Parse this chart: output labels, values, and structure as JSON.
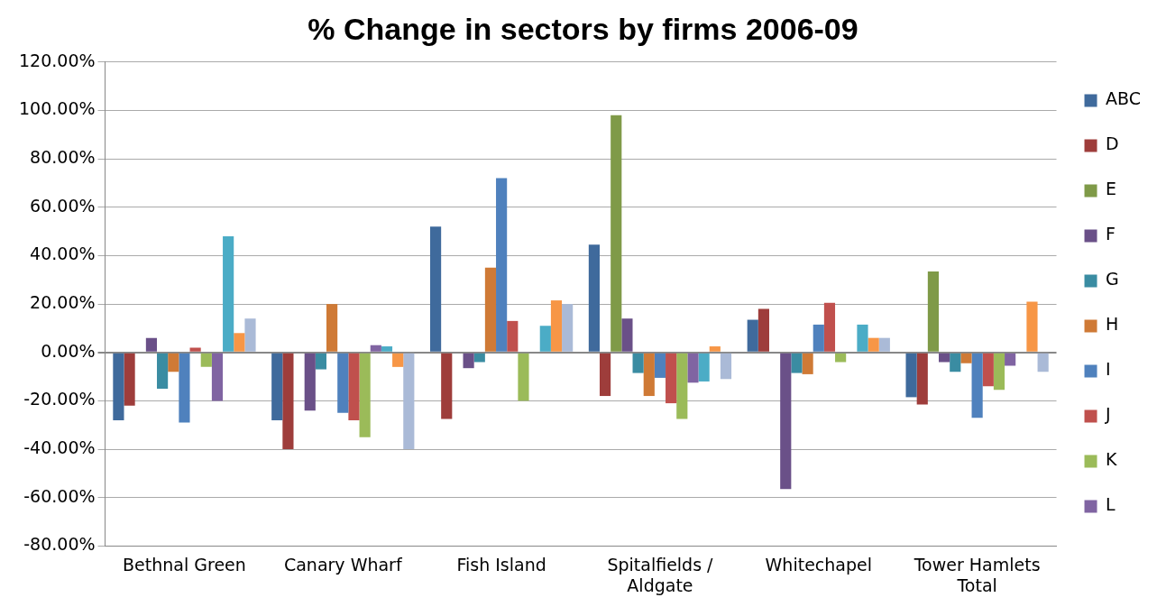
{
  "chart_data": {
    "type": "bar",
    "title": "% Change in sectors by firms 2006-09",
    "categories": [
      "Bethnal Green",
      "Canary Wharf",
      "Fish Island",
      "Spitalfields / Aldgate",
      "Whitechapel",
      "Tower Hamlets Total"
    ],
    "series": [
      {
        "name": "ABC",
        "color": "#3f6a9c",
        "values": [
          -28,
          -28,
          52,
          44.5,
          13.5,
          -18.5
        ]
      },
      {
        "name": "D",
        "color": "#9e3d3b",
        "values": [
          -22,
          -40,
          -27.5,
          -18,
          18,
          -21.5
        ]
      },
      {
        "name": "E",
        "color": "#7f9a48",
        "values": [
          0,
          0,
          0,
          98,
          0,
          33.5
        ]
      },
      {
        "name": "F",
        "color": "#6a5088",
        "values": [
          6,
          -24,
          -6.5,
          14,
          -56.5,
          -4
        ]
      },
      {
        "name": "G",
        "color": "#3a8ca2",
        "values": [
          -15,
          -7,
          -4,
          -8.5,
          -8.5,
          -8
        ]
      },
      {
        "name": "H",
        "color": "#cf7a36",
        "values": [
          -8,
          20,
          35,
          -18,
          -9,
          -4.5
        ]
      },
      {
        "name": "I",
        "color": "#4f81bd",
        "values": [
          -29,
          -25,
          72,
          -10.5,
          11.5,
          -27
        ]
      },
      {
        "name": "J",
        "color": "#c0504d",
        "values": [
          2,
          -28,
          13,
          -21,
          20.5,
          -14
        ]
      },
      {
        "name": "K",
        "color": "#9bbb59",
        "values": [
          -6,
          -35,
          -20,
          -27.5,
          -4,
          -15.5
        ]
      },
      {
        "name": "L",
        "color": "#8064a2",
        "values": [
          -20,
          3,
          0,
          -12.5,
          0,
          -5.5
        ]
      },
      {
        "color": "#4bacc6",
        "values": [
          48,
          2.5,
          11,
          -12,
          11.5,
          0
        ]
      },
      {
        "color": "#f79646",
        "values": [
          8,
          -6,
          21.5,
          2.5,
          6,
          21
        ]
      },
      {
        "color": "#aabad7",
        "values": [
          14,
          -40,
          20,
          -11,
          6,
          -8
        ]
      }
    ],
    "ylim": [
      -80,
      120
    ],
    "yticks": [
      {
        "value": -80,
        "label": "-80.00%"
      },
      {
        "value": -60,
        "label": "-60.00%"
      },
      {
        "value": -40,
        "label": "-40.00%"
      },
      {
        "value": -20,
        "label": "-20.00%"
      },
      {
        "value": 0,
        "label": "0.00%"
      },
      {
        "value": 20,
        "label": "20.00%"
      },
      {
        "value": 40,
        "label": "40.00%"
      },
      {
        "value": 60,
        "label": "60.00%"
      },
      {
        "value": 80,
        "label": "80.00%"
      },
      {
        "value": 100,
        "label": "100.00%"
      },
      {
        "value": 120,
        "label": "120.00%"
      }
    ],
    "grid": "y",
    "legend": "right"
  }
}
